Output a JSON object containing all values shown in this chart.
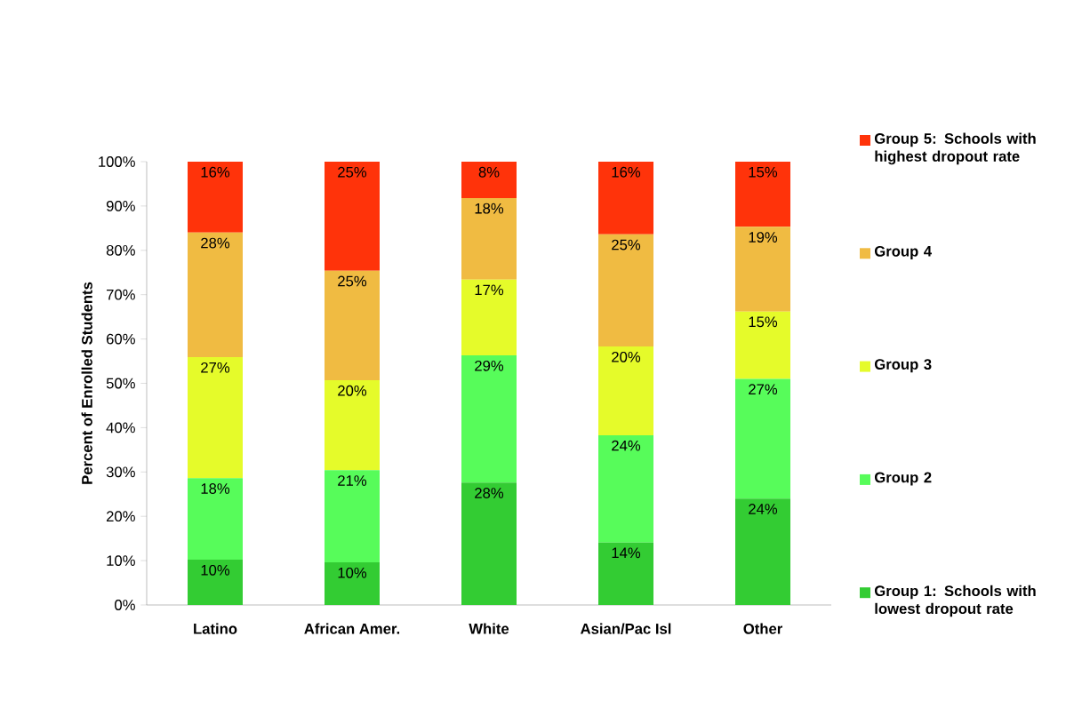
{
  "chart_data": {
    "type": "bar",
    "stacked": true,
    "ylabel": "Percent of Enrolled Students",
    "categories": [
      "Latino",
      "African Amer.",
      "White",
      "Asian/Pac Isl",
      "Other"
    ],
    "ylim": [
      0,
      100
    ],
    "yticks": [
      {
        "value": 0,
        "label": "0%"
      },
      {
        "value": 10,
        "label": "10%"
      },
      {
        "value": 20,
        "label": "20%"
      },
      {
        "value": 30,
        "label": "30%"
      },
      {
        "value": 40,
        "label": "40%"
      },
      {
        "value": 50,
        "label": "50%"
      },
      {
        "value": 60,
        "label": "60%"
      },
      {
        "value": 70,
        "label": "70%"
      },
      {
        "value": 80,
        "label": "80%"
      },
      {
        "value": 90,
        "label": "90%"
      },
      {
        "value": 100,
        "label": "100%"
      }
    ],
    "legend": "right",
    "grid": false,
    "series": [
      {
        "name": "Group 1: Schools with lowest dropout rate",
        "color": "#33cc33",
        "values": [
          10.2,
          9.6,
          27.6,
          14.1,
          24.0
        ],
        "value_labels": [
          "10%",
          "10%",
          "28%",
          "14%",
          "24%"
        ]
      },
      {
        "name": "Group 2",
        "color": "#57fc5a",
        "values": [
          18.4,
          20.8,
          28.7,
          24.2,
          27.0
        ],
        "value_labels": [
          "18%",
          "21%",
          "29%",
          "24%",
          "27%"
        ]
      },
      {
        "name": "Group 3",
        "color": "#e5fb2a",
        "values": [
          27.3,
          20.3,
          17.1,
          20.0,
          15.2
        ],
        "value_labels": [
          "27%",
          "20%",
          "17%",
          "20%",
          "15%"
        ]
      },
      {
        "name": "Group 4",
        "color": "#f0bb42",
        "values": [
          28.1,
          24.7,
          18.4,
          25.3,
          19.1
        ],
        "value_labels": [
          "28%",
          "25%",
          "18%",
          "25%",
          "19%"
        ]
      },
      {
        "name": "Group 5: Schools with highest dropout rate",
        "color": "#ff330a",
        "values": [
          16.0,
          24.6,
          8.2,
          16.4,
          14.7
        ],
        "value_labels": [
          "16%",
          "25%",
          "8%",
          "16%",
          "15%"
        ]
      }
    ]
  }
}
